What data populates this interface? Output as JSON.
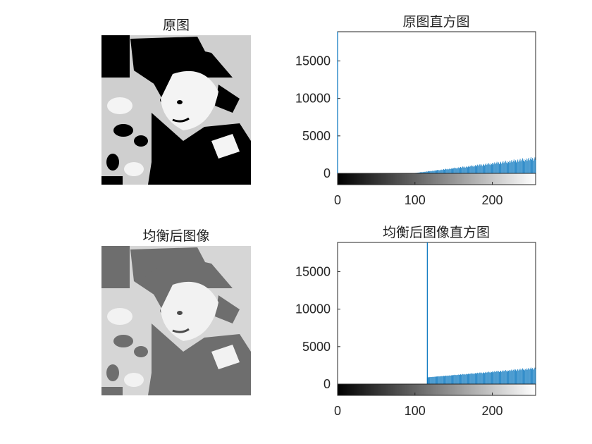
{
  "panels": {
    "original_image": {
      "title": "原图"
    },
    "original_hist": {
      "title": "原图直方图"
    },
    "equalized_image": {
      "title": "均衡后图像"
    },
    "equalized_hist": {
      "title": "均衡后图像直方图"
    }
  },
  "chart_data": [
    {
      "type": "bar",
      "title": "原图直方图",
      "xlim": [
        0,
        256
      ],
      "ylim": [
        0,
        18900
      ],
      "xticks": [
        "0",
        "100",
        "200"
      ],
      "yticks": [
        "0",
        "5000",
        "10000",
        "15000"
      ],
      "bar_color": "#0072bd",
      "colorbar": "grayscale 0-255",
      "series": [
        {
          "x": 0,
          "y": 18900,
          "note": "spike"
        },
        {
          "x": [
            100,
            256
          ],
          "y_range": [
            50,
            2300
          ],
          "trend": "increasing"
        }
      ]
    },
    {
      "type": "bar",
      "title": "均衡后图像直方图",
      "xlim": [
        0,
        256
      ],
      "ylim": [
        0,
        18900
      ],
      "xticks": [
        "0",
        "100",
        "200"
      ],
      "yticks": [
        "0",
        "5000",
        "10000",
        "15000"
      ],
      "bar_color": "#0072bd",
      "colorbar": "grayscale 0-255",
      "series": [
        {
          "x": 116,
          "y": 18900,
          "note": "spike"
        },
        {
          "x": [
            116,
            256
          ],
          "y_range": [
            900,
            2300
          ],
          "trend": "increasing"
        }
      ]
    }
  ]
}
